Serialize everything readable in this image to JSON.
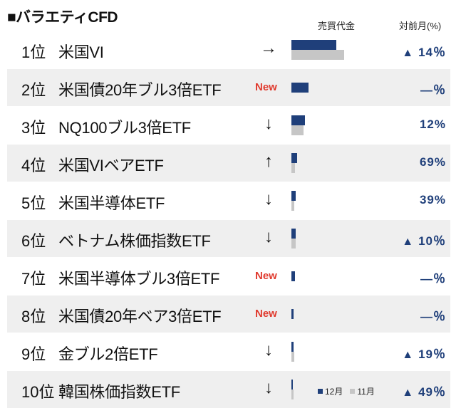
{
  "title": "■バラエティCFD",
  "headers": {
    "sales": "売買代金",
    "mom": "対前月(%)"
  },
  "new_label": "New",
  "legend": {
    "dec": "12月",
    "nov": "11月"
  },
  "colors": {
    "dec_bar": "#1f3f7a",
    "nov_bar": "#c6c6c6",
    "new": "#e03a2e",
    "shaded": "#efefef"
  },
  "rows": [
    {
      "rank": "1位",
      "name": "米国VI",
      "trend": "→",
      "is_new": false,
      "pct_tri": "▲",
      "pct": "14％",
      "dec": 0.63,
      "nov": 0.74
    },
    {
      "rank": "2位",
      "name": "米国債20年ブル3倍ETF",
      "trend": "",
      "is_new": true,
      "pct_tri": "",
      "pct": "—％",
      "dec": 0.24,
      "nov": 0
    },
    {
      "rank": "3位",
      "name": "NQ100ブル3倍ETF",
      "trend": "↓",
      "is_new": false,
      "pct_tri": "",
      "pct": "12%",
      "dec": 0.19,
      "nov": 0.17
    },
    {
      "rank": "4位",
      "name": "米国VIベアETF",
      "trend": "↑",
      "is_new": false,
      "pct_tri": "",
      "pct": "69%",
      "dec": 0.08,
      "nov": 0.05
    },
    {
      "rank": "5位",
      "name": "米国半導体ETF",
      "trend": "↓",
      "is_new": false,
      "pct_tri": "",
      "pct": "39%",
      "dec": 0.06,
      "nov": 0.04
    },
    {
      "rank": "6位",
      "name": "ベトナム株価指数ETF",
      "trend": "↓",
      "is_new": false,
      "pct_tri": "▲",
      "pct": "10％",
      "dec": 0.06,
      "nov": 0.06
    },
    {
      "rank": "7位",
      "name": "米国半導体ブル3倍ETF",
      "trend": "",
      "is_new": true,
      "pct_tri": "",
      "pct": "—％",
      "dec": 0.05,
      "nov": 0
    },
    {
      "rank": "8位",
      "name": "米国債20年ベア3倍ETF",
      "trend": "",
      "is_new": true,
      "pct_tri": "",
      "pct": "—％",
      "dec": 0.03,
      "nov": 0
    },
    {
      "rank": "9位",
      "name": "金ブル2倍ETF",
      "trend": "↓",
      "is_new": false,
      "pct_tri": "▲",
      "pct": "19％",
      "dec": 0.03,
      "nov": 0.04
    },
    {
      "rank": "10位",
      "name": "韓国株価指数ETF",
      "trend": "↓",
      "is_new": false,
      "pct_tri": "▲",
      "pct": "49％",
      "dec": 0.02,
      "nov": 0.03
    }
  ]
}
